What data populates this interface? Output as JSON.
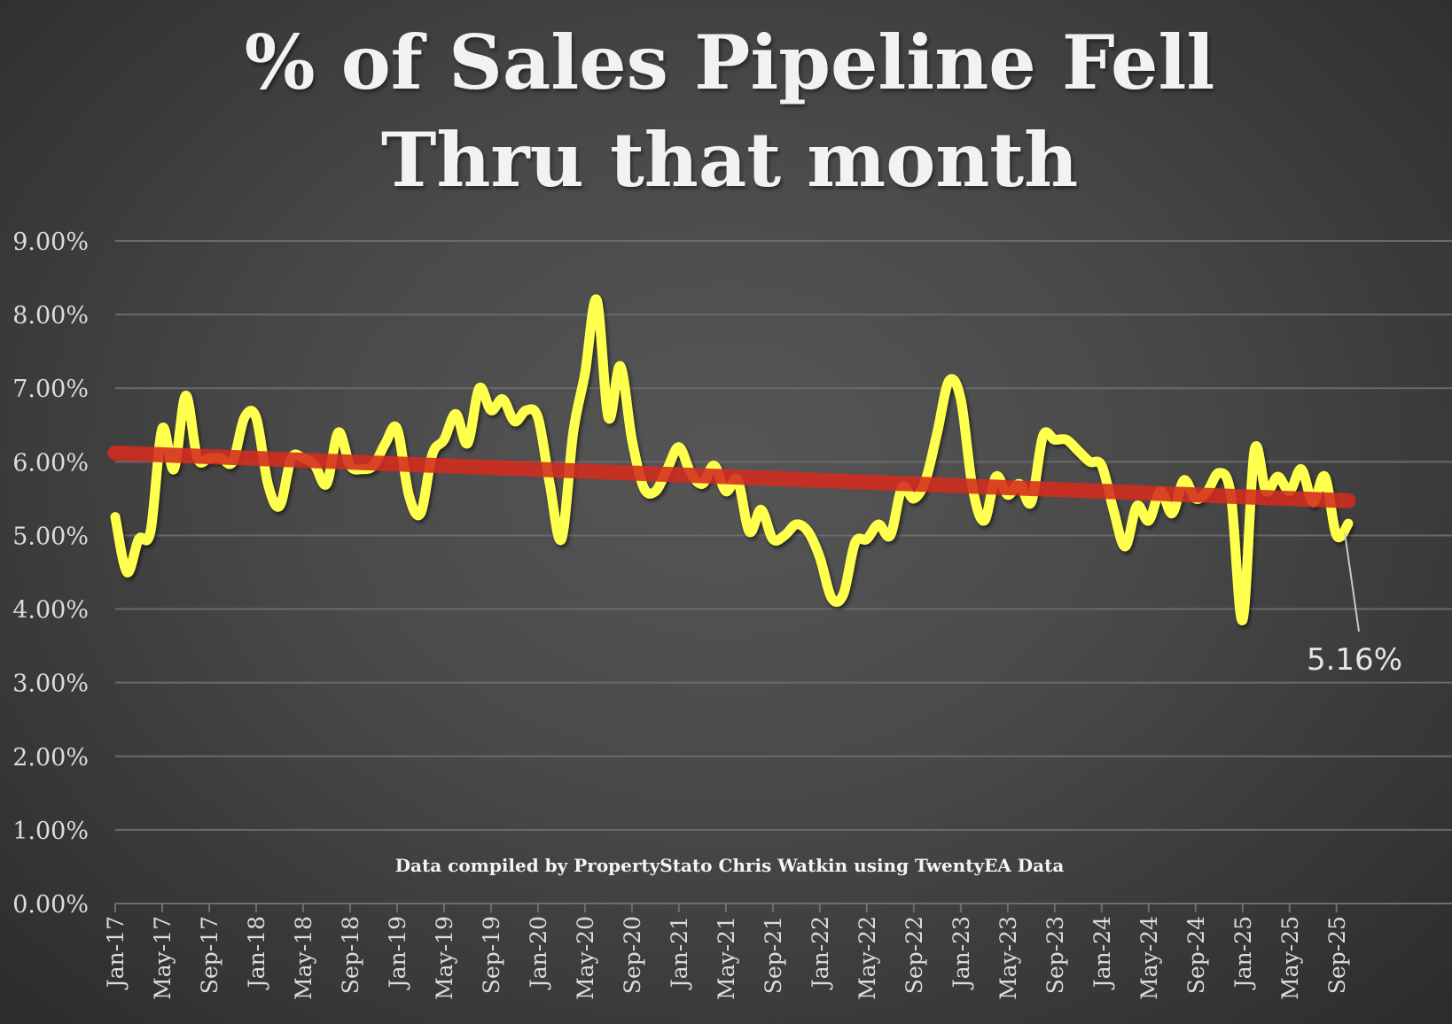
{
  "chart_data": {
    "type": "line",
    "title": [
      "% of Sales Pipeline Fell",
      "Thru that month"
    ],
    "xlabel": "",
    "ylabel": "",
    "ylim": [
      0,
      9
    ],
    "yticks": [
      "0.00%",
      "1.00%",
      "2.00%",
      "3.00%",
      "4.00%",
      "5.00%",
      "6.00%",
      "7.00%",
      "8.00%",
      "9.00%"
    ],
    "xticks": [
      "Jan-17",
      "May-17",
      "Sep-17",
      "Jan-18",
      "May-18",
      "Sep-18",
      "Jan-19",
      "May-19",
      "Sep-19",
      "Jan-20",
      "May-20",
      "Sep-20",
      "Jan-21",
      "May-21",
      "Sep-21",
      "Jan-22",
      "May-22",
      "Sep-22",
      "Jan-23",
      "May-23",
      "Sep-23",
      "Jan-24",
      "May-24",
      "Sep-24",
      "Jan-25",
      "May-25",
      "Sep-25"
    ],
    "x_start": "Jan-17",
    "x_end": "Sep-25",
    "grid": true,
    "legend": "none",
    "series": [
      {
        "name": "% of Sales Pipeline Fell Thru",
        "color": "#ffff4d",
        "values": [
          5.25,
          4.5,
          4.95,
          5.05,
          6.45,
          5.9,
          6.9,
          6.05,
          6.05,
          6.05,
          6.0,
          6.6,
          6.6,
          5.7,
          5.4,
          6.05,
          6.05,
          5.95,
          5.7,
          6.4,
          5.95,
          5.9,
          5.95,
          6.25,
          6.45,
          5.55,
          5.3,
          6.1,
          6.3,
          6.65,
          6.25,
          7.0,
          6.7,
          6.85,
          6.55,
          6.7,
          6.6,
          5.7,
          4.95,
          6.4,
          7.2,
          8.2,
          6.6,
          7.3,
          6.3,
          5.65,
          5.6,
          5.9,
          6.2,
          5.85,
          5.7,
          5.95,
          5.6,
          5.75,
          5.05,
          5.35,
          4.95,
          5.0,
          5.15,
          5.05,
          4.7,
          4.15,
          4.2,
          4.9,
          4.95,
          5.15,
          5.0,
          5.65,
          5.5,
          5.75,
          6.4,
          7.1,
          6.85,
          5.65,
          5.2,
          5.8,
          5.55,
          5.7,
          5.45,
          6.35,
          6.3,
          6.3,
          6.15,
          6.0,
          5.95,
          5.35,
          4.85,
          5.4,
          5.2,
          5.6,
          5.3,
          5.75,
          5.5,
          5.6,
          5.85,
          5.55,
          3.85,
          6.15,
          5.6,
          5.8,
          5.6,
          5.9,
          5.45,
          5.8,
          5.0,
          5.16
        ]
      },
      {
        "name": "Linear trendline",
        "color": "#d42b1e",
        "type": "trendline",
        "values": [
          6.12,
          5.47
        ]
      }
    ],
    "annotations": [
      {
        "text": "5.16%",
        "x": "Sep-25",
        "y": 5.16
      }
    ],
    "credit": "Data compiled by PropertyStato Chris Watkin using TwentyEA Data"
  }
}
